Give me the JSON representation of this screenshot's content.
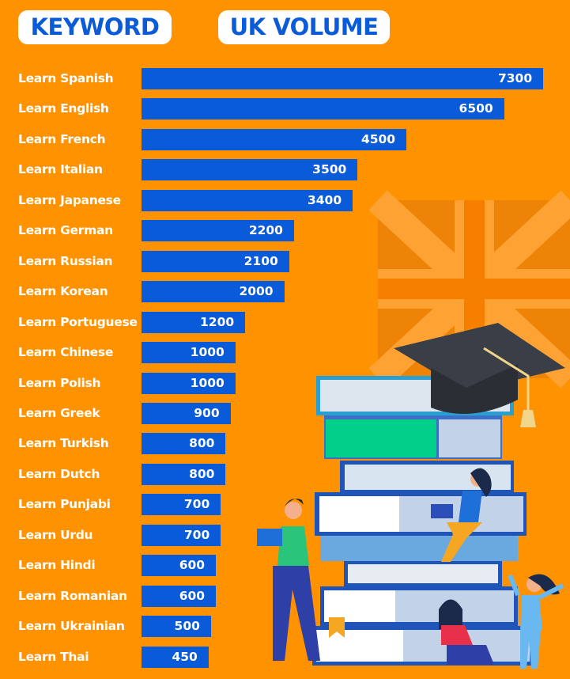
{
  "headers": {
    "keyword": "KEYWORD",
    "volume": "UK VOLUME"
  },
  "colors": {
    "background": "#ff9200",
    "bar": "#0a5bd9",
    "header_text": "#0b5bd9"
  },
  "chart_data": {
    "type": "bar",
    "orientation": "horizontal",
    "categories": [
      "Learn Spanish",
      "Learn English",
      "Learn French",
      "Learn Italian",
      "Learn Japanese",
      "Learn German",
      "Learn Russian",
      "Learn Korean",
      "Learn Portuguese",
      "Learn Chinese",
      "Learn Polish",
      "Learn Greek",
      "Learn Turkish",
      "Learn Dutch",
      "Learn Punjabi",
      "Learn Urdu",
      "Learn Hindi",
      "Learn Romanian",
      "Learn Ukrainian",
      "Learn Thai"
    ],
    "values": [
      7300,
      6500,
      4500,
      3500,
      3400,
      2200,
      2100,
      2000,
      1200,
      1000,
      1000,
      900,
      800,
      800,
      700,
      700,
      600,
      600,
      500,
      450
    ],
    "data_labels": true,
    "grid": false
  },
  "illustration": {
    "icons": [
      "uk-flag",
      "book-stack",
      "graduation-cap",
      "people-reading"
    ]
  }
}
